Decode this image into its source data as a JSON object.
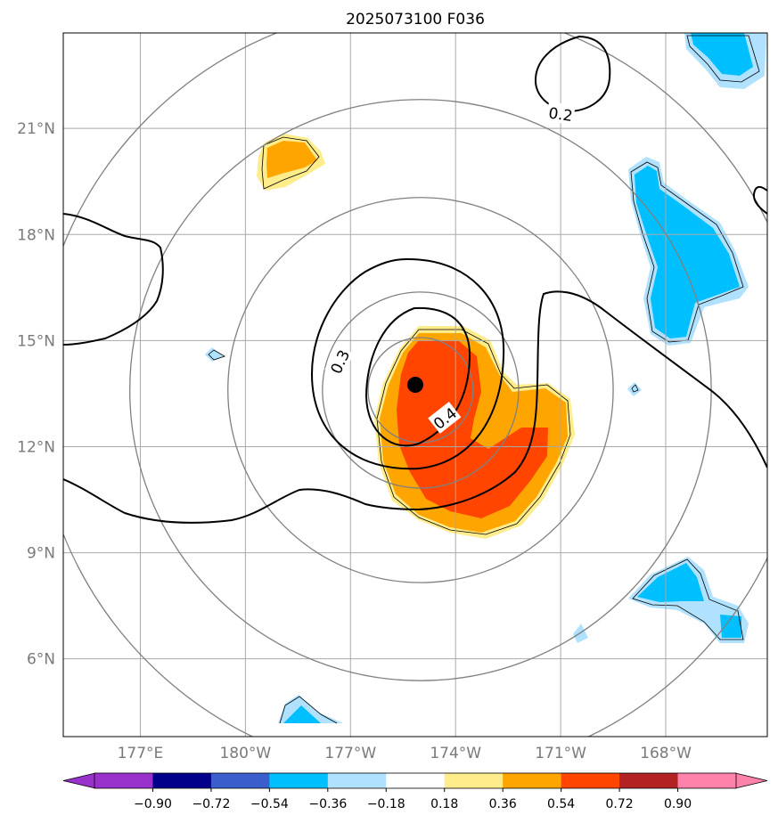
{
  "chart_data": {
    "type": "contour",
    "title": "2025073100 F036",
    "yticks": [
      {
        "label": "21°N",
        "lat": 21
      },
      {
        "label": "18°N",
        "lat": 18
      },
      {
        "label": "15°N",
        "lat": 15
      },
      {
        "label": "12°N",
        "lat": 12
      },
      {
        "label": "9°N",
        "lat": 9
      },
      {
        "label": "6°N",
        "lat": 6
      }
    ],
    "xticks": [
      {
        "label": "177°E",
        "lon": 177
      },
      {
        "label": "180°W",
        "lon": 180
      },
      {
        "label": "177°W",
        "lon": 183
      },
      {
        "label": "174°W",
        "lon": 186
      },
      {
        "label": "171°W",
        "lon": 189
      },
      {
        "label": "168°W",
        "lon": 192
      }
    ],
    "lon_range": [
      174.8,
      194.9
    ],
    "lat_range": [
      3.8,
      23.7
    ],
    "center": {
      "lon": 185.0,
      "lat": 13.6
    },
    "range_rings_deg": [
      1.5,
      2.8,
      5.5,
      8.3,
      11.0
    ],
    "contour_labels": [
      {
        "text": "0.2",
        "lon": 189.0,
        "lat": 21.4
      },
      {
        "text": "0.3",
        "lon": 182.7,
        "lat": 14.4
      },
      {
        "text": "0.4",
        "lon": 185.7,
        "lat": 12.8
      }
    ],
    "colorbar": {
      "levels": [
        "−0.90",
        "−0.72",
        "−0.54",
        "−0.36",
        "−0.18",
        "0.18",
        "0.36",
        "0.54",
        "0.72",
        "0.90"
      ],
      "colors": [
        "#9932cc",
        "#00008b",
        "#3a5fcd",
        "#00bfff",
        "#b0e2ff",
        "#ffffff",
        "#ffec8b",
        "#ffa500",
        "#ff4500",
        "#b22222",
        "#ff82ab"
      ],
      "extend": "both"
    },
    "grid": true
  }
}
